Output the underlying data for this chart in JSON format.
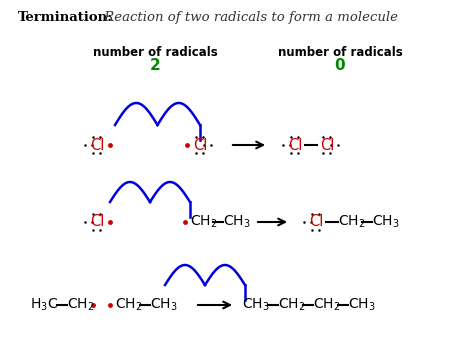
{
  "bg_color": "#ffffff",
  "red_color": "#cc0000",
  "blue_color": "#0000dd",
  "green_color": "#008800",
  "black_color": "#000000",
  "gray_color": "#555555",
  "title_bold": "Termination:",
  "title_italic": " Reaction of two radicals to form a molecule",
  "radical_label": "number of radicals",
  "radical_2": "2",
  "radical_0": "0"
}
